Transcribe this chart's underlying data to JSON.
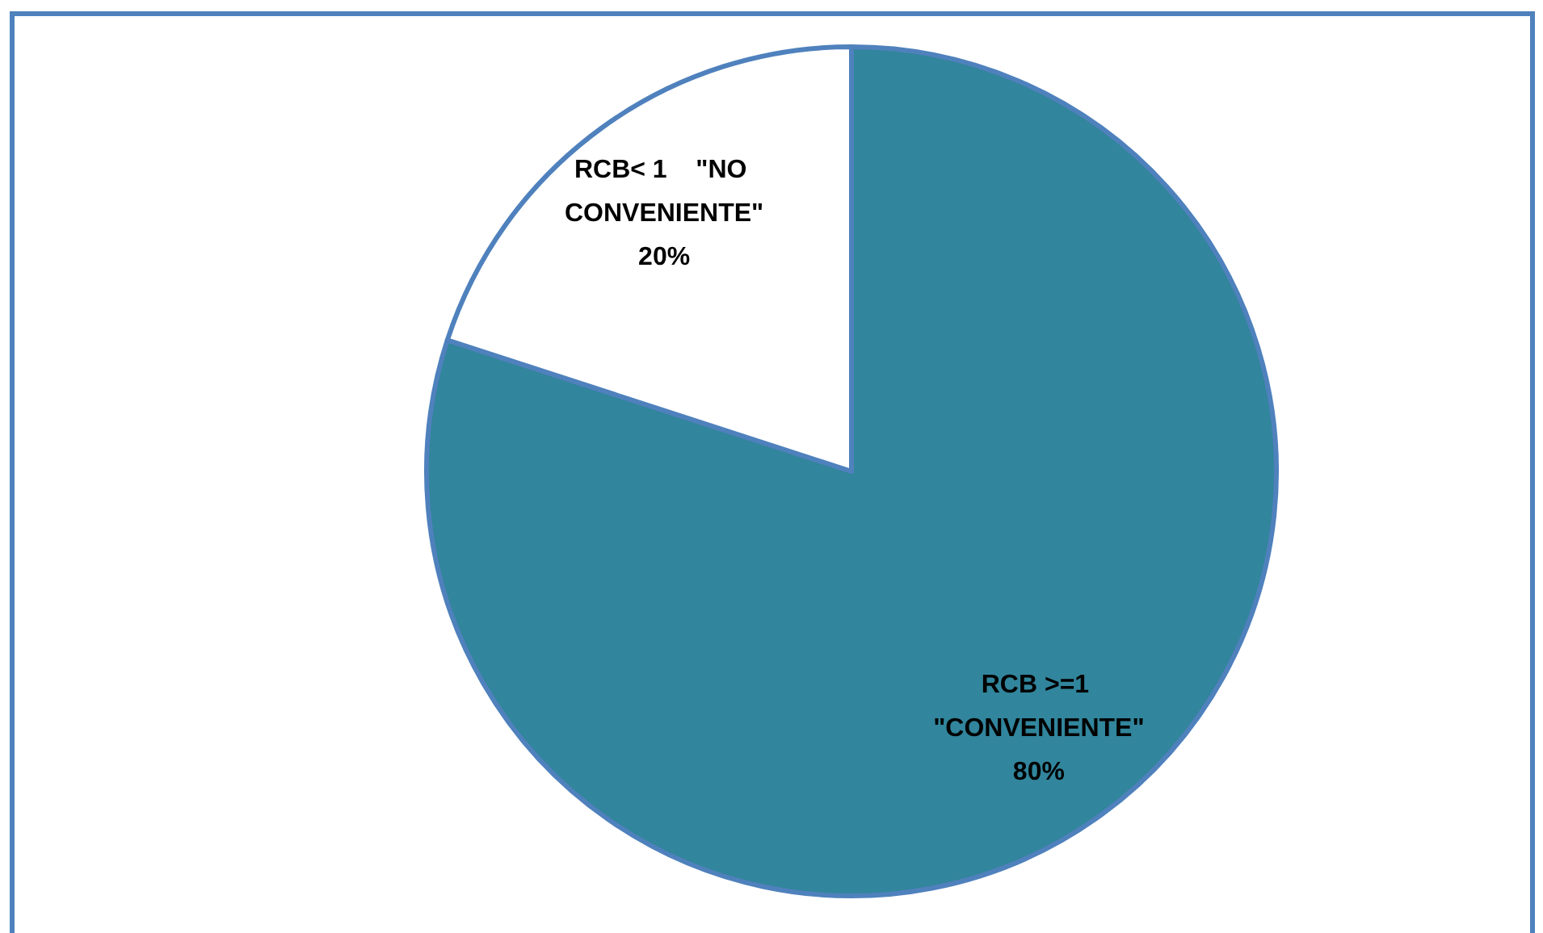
{
  "chart_data": {
    "type": "pie",
    "categories": [
      "RCB >=1 \"CONVENIENTE\"",
      "RCB< 1    \"NO CONVENIENTE\""
    ],
    "values": [
      80,
      20
    ],
    "value_labels": [
      "80%",
      "20%"
    ],
    "colors": [
      "#31859c",
      "#ffffff"
    ],
    "legend": false
  }
}
